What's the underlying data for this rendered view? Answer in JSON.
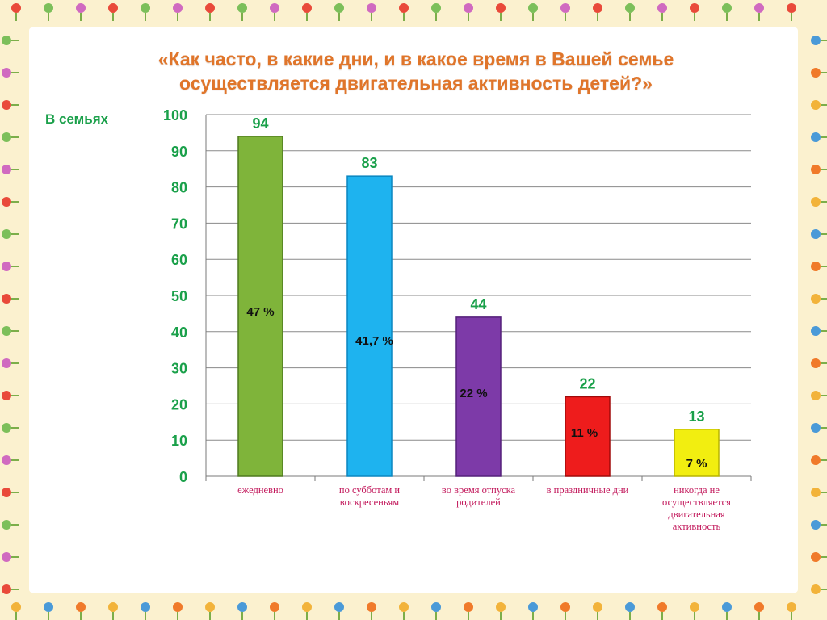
{
  "title_line1": "«Как часто, в какие дни, и в какое время в Вашей семье",
  "title_line2": "осуществляется двигательная активность детей?»",
  "chart_data": {
    "type": "bar",
    "ylabel": "В семьях",
    "ylim": [
      0,
      100
    ],
    "yticks": [
      0,
      10,
      20,
      30,
      40,
      50,
      60,
      70,
      80,
      90,
      100
    ],
    "grid": true,
    "categories": [
      "ежедневно",
      "по субботам и воскресеньям",
      "во время отпуска родителей",
      "в праздничные дни",
      "никогда не осуществляется двигательная активность"
    ],
    "values": [
      94,
      83,
      44,
      22,
      13
    ],
    "percent_labels": [
      "47 %",
      "41,7 %",
      "22 %",
      "11 %",
      "7 %"
    ],
    "colors": [
      "#7fb43a",
      "#1eb3ef",
      "#7d3aa8",
      "#ee1c1c",
      "#f2ee10"
    ]
  }
}
